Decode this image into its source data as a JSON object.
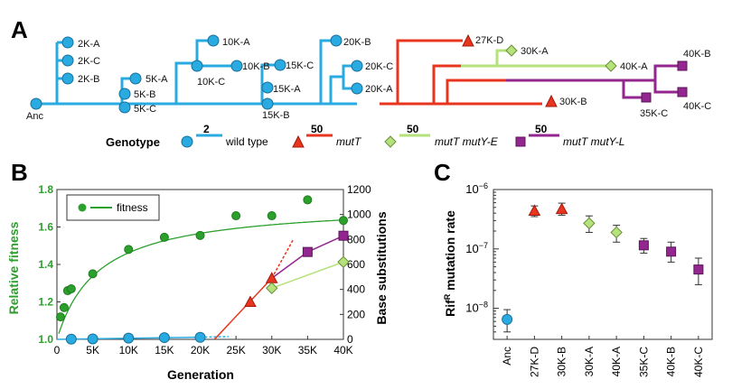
{
  "panel_a": {
    "letter": "A",
    "nodes": {
      "anc": "Anc",
      "k2a": "2K-A",
      "k2c": "2K-C",
      "k2b": "2K-B",
      "k5a": "5K-A",
      "k5b": "5K-B",
      "k5c": "5K-C",
      "k10a": "10K-A",
      "k10b": "10K-B",
      "k10c": "10K-C",
      "k15c": "15K-C",
      "k15a": "15K-A",
      "k15b": "15K-B",
      "k20b": "20K-B",
      "k20c": "20K-C",
      "k20a": "20K-A",
      "k27d": "27K-D",
      "k30a": "30K-A",
      "k40a": "40K-A",
      "k30b": "30K-B",
      "k40b": "40K-B",
      "k35c": "35K-C",
      "k40c": "40K-C"
    },
    "legend": {
      "title": "Genotype",
      "items": [
        {
          "count": "2",
          "label": "wild type",
          "color": "#29abe2",
          "marker": "circle"
        },
        {
          "count": "50",
          "label": "mutT",
          "color": "#e8351f",
          "marker": "triangle"
        },
        {
          "count": "50",
          "label": "mutT mutY-E",
          "color": "#b5e27a",
          "marker": "diamond"
        },
        {
          "count": "50",
          "label": "mutT mutY-L",
          "color": "#93278f",
          "marker": "square"
        }
      ]
    }
  },
  "chart_data": [
    {
      "type": "scatter",
      "panel": "B",
      "xlabel": "Generation",
      "ylabel": "Relative fitness",
      "y2label": "Base substitutions",
      "xlim": [
        0,
        40000
      ],
      "ylim": [
        1.0,
        1.8
      ],
      "y2lim": [
        0,
        1200
      ],
      "xticks": [
        "0",
        "5K",
        "10K",
        "15K",
        "20K",
        "25K",
        "30K",
        "35K",
        "40K"
      ],
      "yticks": [
        "1.0",
        "1.2",
        "1.4",
        "1.6",
        "1.8"
      ],
      "y2ticks": [
        "0",
        "200",
        "400",
        "600",
        "800",
        "1000",
        "1200"
      ],
      "legend": "fitness",
      "fitness": {
        "x": [
          500,
          1000,
          1500,
          2000,
          5000,
          10000,
          15000,
          20000,
          25000,
          30000,
          35000,
          40000
        ],
        "y": [
          1.12,
          1.17,
          1.26,
          1.27,
          1.35,
          1.48,
          1.545,
          1.555,
          1.66,
          1.66,
          1.745,
          1.635
        ]
      },
      "mutations": [
        {
          "genotype": "wild type",
          "color": "#29abe2",
          "marker": "circle",
          "x": [
            2000,
            5000,
            10000,
            15000,
            20000
          ],
          "y": [
            2,
            4,
            10,
            14,
            16
          ]
        },
        {
          "genotype": "mutT",
          "color": "#e8351f",
          "marker": "triangle",
          "x": [
            27000,
            30000
          ],
          "y": [
            300,
            490
          ]
        },
        {
          "genotype": "mutT mutY-E",
          "color": "#b5e27a",
          "marker": "diamond",
          "x": [
            30000,
            40000
          ],
          "y": [
            410,
            620
          ]
        },
        {
          "genotype": "mutT mutY-L",
          "color": "#93278f",
          "marker": "square",
          "x": [
            35000,
            40000
          ],
          "y": [
            700,
            830
          ]
        }
      ]
    },
    {
      "type": "scatter",
      "panel": "C",
      "ylabel": "Rif",
      "ylabel_sup": "R",
      "ylabel_rest": " mutation rate",
      "ylog": true,
      "ylim": [
        3e-09,
        1e-06
      ],
      "ytick_base": "10",
      "yticks": [
        {
          "value": 1e-08,
          "exp": "−8"
        },
        {
          "value": 1e-07,
          "exp": "−7"
        },
        {
          "value": 1e-06,
          "exp": "−6"
        }
      ],
      "categories": [
        "Anc",
        "27K-D",
        "30K-B",
        "30K-A",
        "40K-A",
        "35K-C",
        "40K-B",
        "40K-C"
      ],
      "values": [
        6.5e-09,
        4.4e-07,
        4.7e-07,
        2.7e-07,
        1.9e-07,
        1.15e-07,
        9e-08,
        4.5e-08
      ],
      "err_low": [
        4e-09,
        3.5e-07,
        3.7e-07,
        1.9e-07,
        1.3e-07,
        8.5e-08,
        6e-08,
        2.5e-08
      ],
      "err_high": [
        9.5e-09,
        5.3e-07,
        5.9e-07,
        3.6e-07,
        2.5e-07,
        1.5e-07,
        1.3e-07,
        7e-08
      ],
      "markers": [
        "circle",
        "triangle",
        "triangle",
        "diamond",
        "diamond",
        "square",
        "square",
        "square"
      ],
      "colors": [
        "#29abe2",
        "#e8351f",
        "#e8351f",
        "#b5e27a",
        "#b5e27a",
        "#93278f",
        "#93278f",
        "#93278f"
      ]
    }
  ],
  "labels": {
    "panel_b": "B",
    "panel_c": "C"
  },
  "colors": {
    "fitness": "#2ca02c",
    "fitness_dark": "#1f7a1f",
    "wild": "#29abe2",
    "mutT": "#e8351f",
    "mutYE": "#b5e27a",
    "mutYL": "#93278f"
  }
}
